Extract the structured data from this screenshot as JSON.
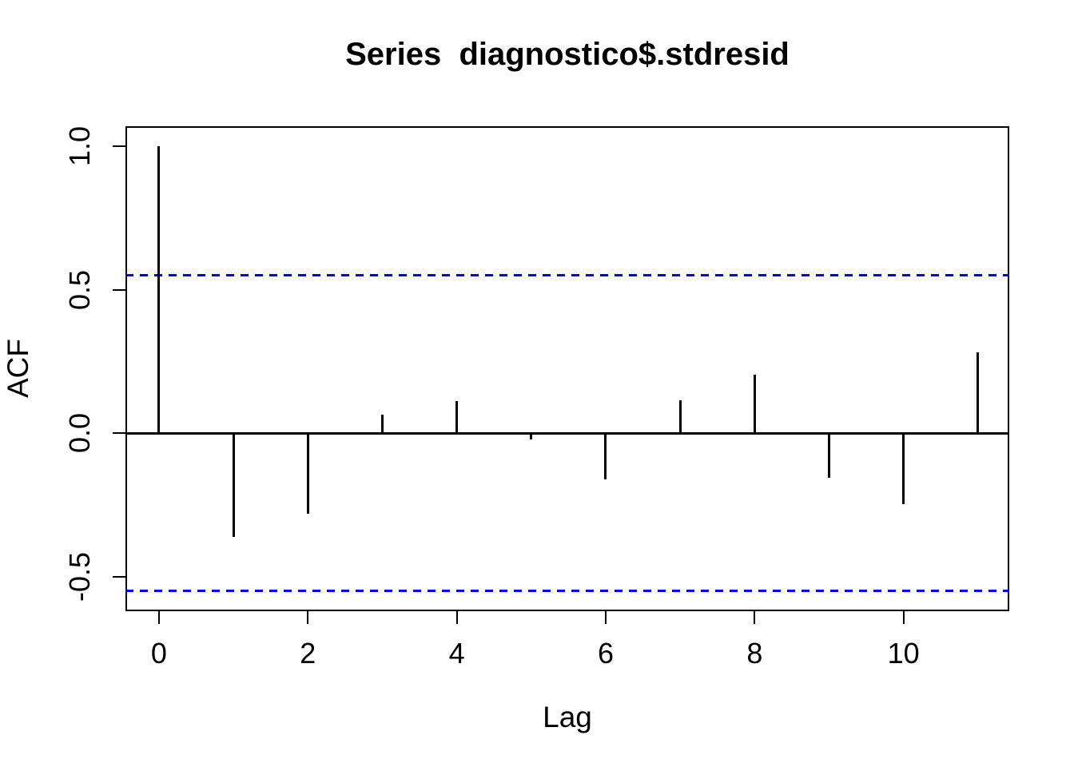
{
  "title": "Series  diagnostico$.stdresid",
  "chart_data": {
    "type": "bar",
    "subtype": "acf-stem-plot",
    "title": "Series  diagnostico$.stdresid",
    "xlabel": "Lag",
    "ylabel": "ACF",
    "x": [
      0,
      1,
      2,
      3,
      4,
      5,
      6,
      7,
      8,
      9,
      10,
      11
    ],
    "values": [
      1.0,
      -0.36,
      -0.28,
      0.065,
      0.112,
      -0.022,
      -0.161,
      0.114,
      0.204,
      -0.156,
      -0.248,
      0.283
    ],
    "confidence_bounds": {
      "upper": 0.55,
      "lower": -0.55,
      "style": "dashed"
    },
    "x_ticks": [
      0,
      2,
      4,
      6,
      8,
      10
    ],
    "x_tick_labels": [
      "0",
      "2",
      "4",
      "6",
      "8",
      "10"
    ],
    "y_ticks": [
      1.0,
      0.5,
      0.0,
      -0.5
    ],
    "y_tick_labels": [
      "1.0",
      "0.5",
      "0.0",
      "-0.5"
    ],
    "xlim": [
      -0.45,
      11.42
    ],
    "ylim": [
      -0.62,
      1.07
    ],
    "grid": false,
    "legend": null,
    "colors": {
      "series": "#000000",
      "confidence_line": "#0000EE",
      "axis": "#000000",
      "background": "#FFFFFF"
    }
  }
}
